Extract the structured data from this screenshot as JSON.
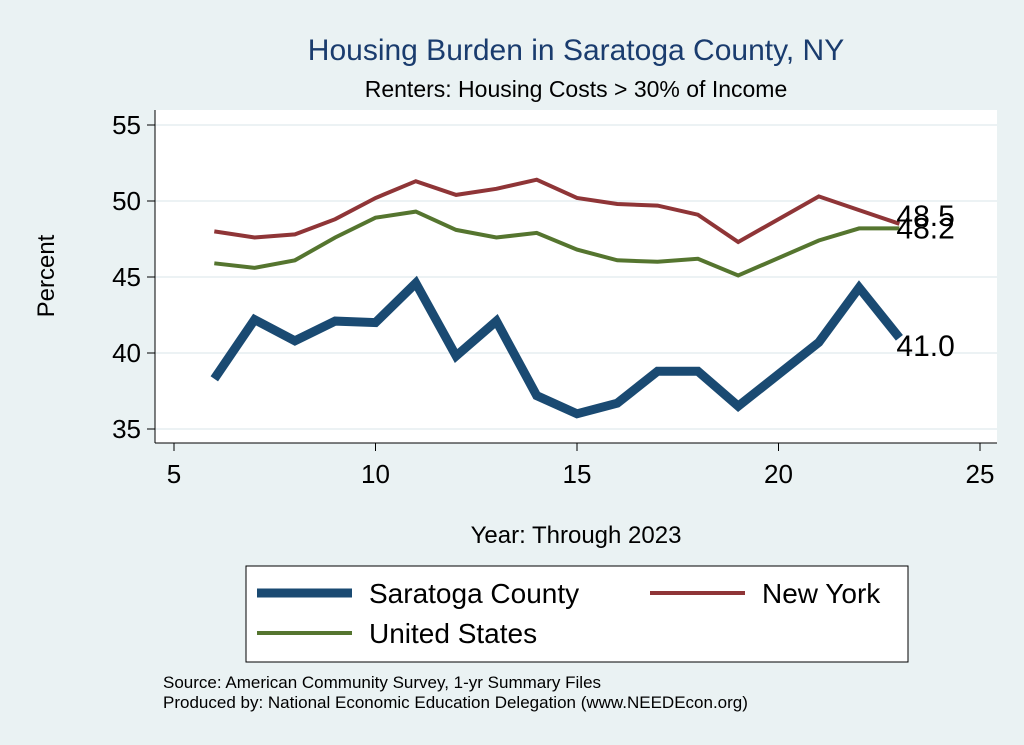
{
  "chart_data": {
    "type": "line",
    "title": "Housing Burden in Saratoga County, NY",
    "subtitle": "Renters: Housing Costs > 30% of Income",
    "xlabel": "Year: Through 2023",
    "ylabel": "Percent",
    "xlim": [
      5,
      25
    ],
    "ylim": [
      34.5,
      55.5
    ],
    "xticks": [
      "5",
      "10",
      "15",
      "20",
      "25"
    ],
    "xtick_values": [
      5,
      10,
      15,
      20,
      25
    ],
    "yticks": [
      "35",
      "40",
      "45",
      "50",
      "55"
    ],
    "ytick_values": [
      35,
      40,
      45,
      50,
      55
    ],
    "grid": true,
    "series": [
      {
        "name": "Saratoga County",
        "color": "#1a4a72",
        "x": [
          6,
          7,
          8,
          9,
          10,
          11,
          12,
          13,
          14,
          15,
          16,
          17,
          18,
          19,
          21,
          22,
          23
        ],
        "values": [
          38.3,
          42.2,
          40.8,
          42.1,
          42.0,
          44.6,
          39.8,
          42.1,
          37.2,
          36.0,
          36.7,
          38.8,
          38.8,
          36.5,
          40.7,
          44.3,
          41.0
        ],
        "end_label": "41.0"
      },
      {
        "name": "New York",
        "color": "#8f3537",
        "x": [
          6,
          7,
          8,
          9,
          10,
          11,
          12,
          13,
          14,
          15,
          16,
          17,
          18,
          19,
          21,
          22,
          23
        ],
        "values": [
          48.0,
          47.6,
          47.8,
          48.8,
          50.2,
          51.3,
          50.4,
          50.8,
          51.4,
          50.2,
          49.8,
          49.7,
          49.1,
          47.3,
          50.3,
          49.4,
          48.5
        ],
        "end_label": "48.5"
      },
      {
        "name": "United States",
        "color": "#55752f",
        "x": [
          6,
          7,
          8,
          9,
          10,
          11,
          12,
          13,
          14,
          15,
          16,
          17,
          18,
          19,
          21,
          22,
          23
        ],
        "values": [
          45.9,
          45.6,
          46.1,
          47.6,
          48.9,
          49.3,
          48.1,
          47.6,
          47.9,
          46.8,
          46.1,
          46.0,
          46.2,
          45.1,
          47.4,
          48.2,
          48.2
        ],
        "end_label": "48.2"
      }
    ],
    "legend": [
      "Saratoga County",
      "New York",
      "United States"
    ]
  },
  "source": {
    "line1": "Source: American Community Survey, 1-yr Summary Files",
    "line2": "Produced by: National Economic Education Delegation (www.NEEDEcon.org)"
  }
}
